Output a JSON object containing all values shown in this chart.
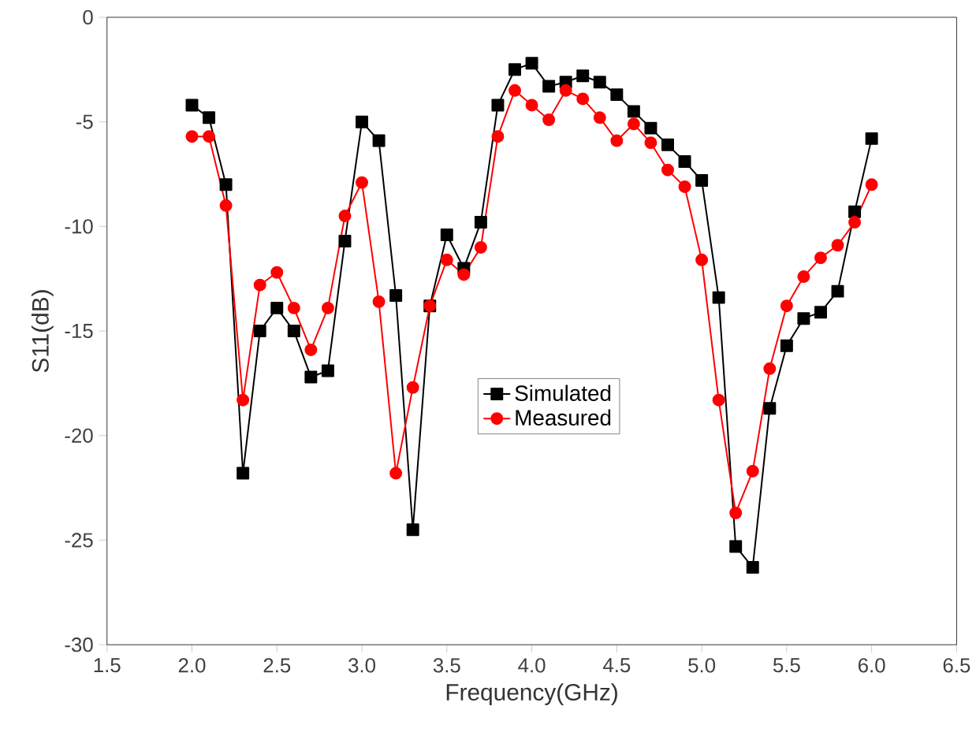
{
  "chart_data": {
    "type": "line",
    "xlabel": "Frequency(GHz)",
    "ylabel": "S11(dB)",
    "x": [
      2.0,
      2.1,
      2.2,
      2.3,
      2.4,
      2.5,
      2.6,
      2.7,
      2.8,
      2.9,
      3.0,
      3.1,
      3.2,
      3.3,
      3.4,
      3.5,
      3.6,
      3.7,
      3.8,
      3.9,
      4.0,
      4.1,
      4.2,
      4.3,
      4.4,
      4.5,
      4.6,
      4.7,
      4.8,
      4.9,
      5.0,
      5.1,
      5.2,
      5.3,
      5.4,
      5.5,
      5.6,
      5.7,
      5.8,
      5.9,
      6.0
    ],
    "series": [
      {
        "name": "Simulated",
        "color": "#000000",
        "marker": "square",
        "values": [
          -4.2,
          -4.8,
          -8.0,
          -21.8,
          -15.0,
          -13.9,
          -15.0,
          -17.2,
          -16.9,
          -10.7,
          -5.0,
          -5.9,
          -13.3,
          -24.5,
          -13.8,
          -10.4,
          -12.0,
          -9.8,
          -4.2,
          -2.5,
          -2.2,
          -3.3,
          -3.1,
          -2.8,
          -3.1,
          -3.7,
          -4.5,
          -5.3,
          -6.1,
          -6.9,
          -7.8,
          -13.4,
          -25.3,
          -26.3,
          -18.7,
          -15.7,
          -14.4,
          -14.1,
          -13.1,
          -9.3,
          -5.8
        ]
      },
      {
        "name": "Measured",
        "color": "#ff0000",
        "marker": "circle",
        "values": [
          -5.7,
          -5.7,
          -9.0,
          -18.3,
          -12.8,
          -12.2,
          -13.9,
          -15.9,
          -13.9,
          -9.5,
          -7.9,
          -13.6,
          -21.8,
          -17.7,
          -13.8,
          -11.6,
          -12.3,
          -11.0,
          -5.7,
          -3.5,
          -4.2,
          -4.9,
          -3.5,
          -3.9,
          -4.8,
          -5.9,
          -5.1,
          -6.0,
          -7.3,
          -8.1,
          -11.6,
          -18.3,
          -23.7,
          -21.7,
          -16.8,
          -13.8,
          -12.4,
          -11.5,
          -10.9,
          -9.8,
          -8.0
        ]
      }
    ],
    "xlim": [
      1.5,
      6.5
    ],
    "ylim": [
      -30,
      0
    ],
    "xticks": [
      {
        "value": 1.5,
        "label": "1.5"
      },
      {
        "value": 2,
        "label": "2.0"
      },
      {
        "value": 2.5,
        "label": "2.5"
      },
      {
        "value": 3,
        "label": "3.0"
      },
      {
        "value": 3.5,
        "label": "3.5"
      },
      {
        "value": 4,
        "label": "4.0"
      },
      {
        "value": 4.5,
        "label": "4.5"
      },
      {
        "value": 5,
        "label": "5.0"
      },
      {
        "value": 5.5,
        "label": "5.5"
      },
      {
        "value": 6,
        "label": "6.0"
      },
      {
        "value": 6.5,
        "label": "6.5"
      }
    ],
    "yticks": [
      -30,
      -25,
      -20,
      -15,
      -10,
      -5,
      0
    ],
    "legend": "center",
    "grid": false,
    "line_style": "solid"
  }
}
